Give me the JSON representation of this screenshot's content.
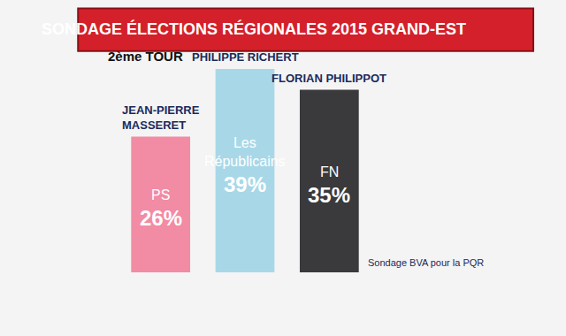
{
  "chart_data": {
    "type": "bar",
    "title": "SONDAGE ÉLECTIONS RÉGIONALES 2015 GRAND-EST",
    "subtitle": "2ème TOUR",
    "categories": [
      "JEAN-PIERRE\nMASSERET",
      "PHILIPPE RICHERT",
      "FLORIAN PHILIPPOT"
    ],
    "parties": [
      "PS",
      "Les\nRépublicains",
      "FN"
    ],
    "values": [
      26,
      39,
      35
    ],
    "value_labels": [
      "26%",
      "39%",
      "35%"
    ],
    "colors": [
      "#f28ba4",
      "#a8d8e8",
      "#3a3a3c"
    ],
    "ylim": [
      0,
      40
    ],
    "data_labels": true,
    "tick_labels": false,
    "grid": false,
    "source": "Sondage BVA pour la PQR"
  }
}
